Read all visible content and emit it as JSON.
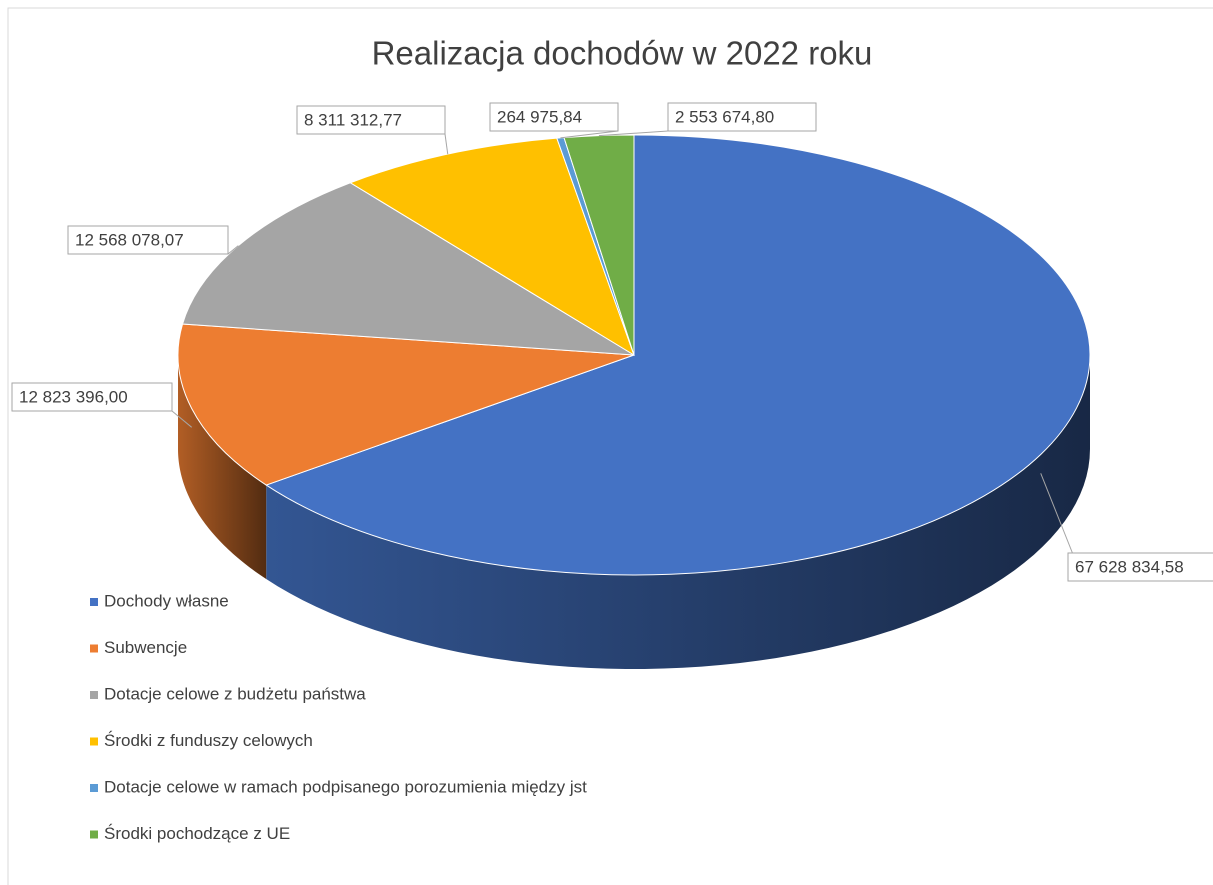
{
  "chart_data": {
    "type": "pie3d",
    "title": "Realizacja dochodów w 2022 roku",
    "categories": [
      "Dochody własne",
      "Subwencje",
      "Dotacje celowe z budżetu państwa",
      "Środki z funduszy celowych",
      "Dotacje celowe w ramach podpisanego porozumienia między jst",
      "Środki pochodzące z UE"
    ],
    "values": [
      67628834.58,
      12823396.0,
      12568078.07,
      8311312.77,
      264975.84,
      2553674.8
    ],
    "value_labels": [
      "67 628 834,58",
      "12 823 396,00",
      "12 568 078,07",
      "8 311 312,77",
      "264 975,84",
      "2 553 674,80"
    ],
    "colors": [
      "#4472c4",
      "#ed7d31",
      "#a5a5a5",
      "#ffc000",
      "#5b9bd5",
      "#70ad47"
    ],
    "legend": "bottom-left"
  }
}
